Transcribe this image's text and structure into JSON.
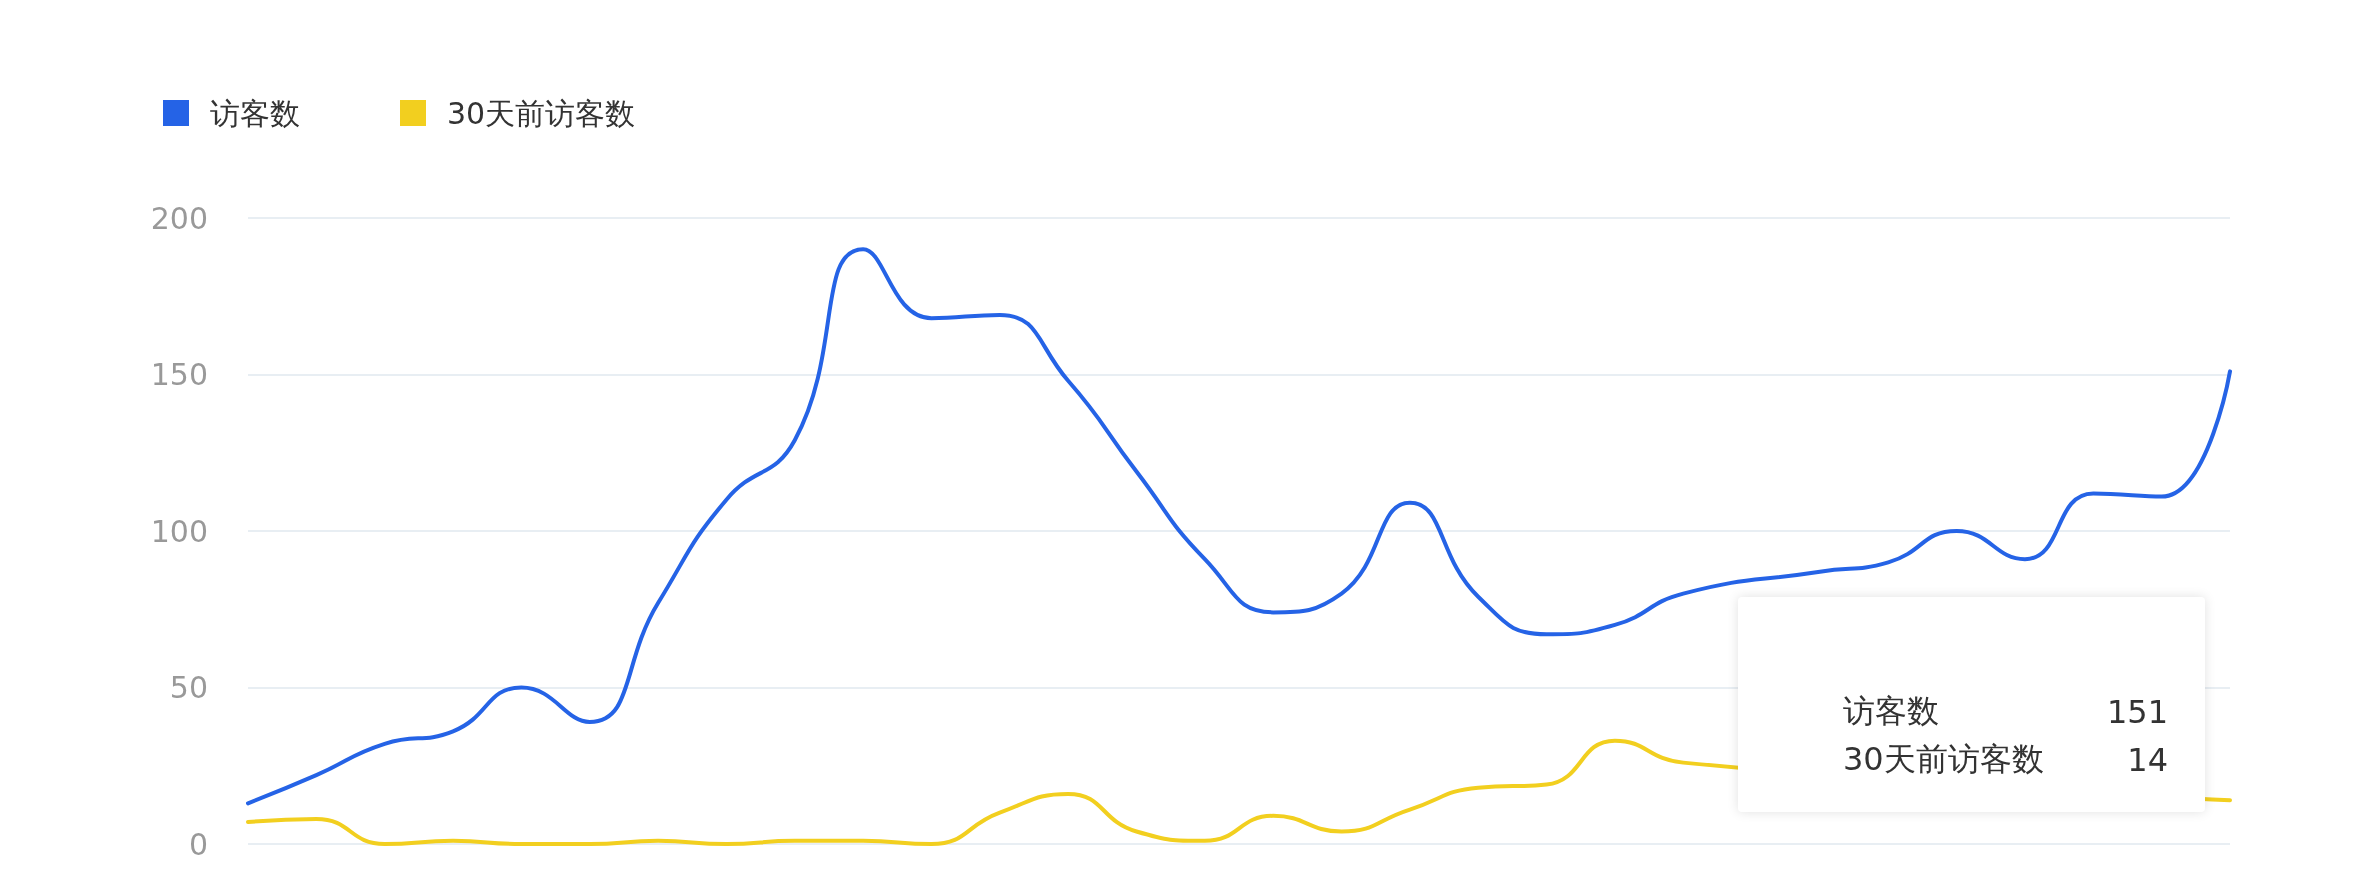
{
  "chart_data": {
    "type": "line",
    "categories": [
      null,
      null,
      null,
      null,
      null,
      null,
      null,
      null,
      null,
      null,
      null,
      null,
      null,
      null,
      null,
      null,
      null,
      null,
      null,
      null,
      null,
      null,
      null,
      null,
      null,
      null,
      null,
      null,
      null,
      null
    ],
    "series": [
      {
        "name": "访客数",
        "color": "#2563e6",
        "values": [
          13,
          22,
          32,
          36,
          50,
          39,
          77,
          110,
          129,
          190,
          168,
          169,
          148,
          119,
          91,
          74,
          80,
          109,
          79,
          67,
          70,
          80,
          null,
          87,
          90,
          100,
          91,
          112,
          111,
          151
        ]
      },
      {
        "name": "30天前访客数",
        "color": "#f2cf1f",
        "values": [
          7,
          8,
          0,
          1,
          0,
          0,
          1,
          0,
          1,
          1,
          0,
          10,
          16,
          4,
          1,
          9,
          4,
          11,
          18,
          19,
          33,
          26,
          null,
          null,
          null,
          null,
          null,
          null,
          null,
          14
        ]
      }
    ],
    "ylim": [
      0,
      200
    ],
    "yticks": [
      0,
      50,
      100,
      150,
      200
    ],
    "grid": "y",
    "legend": "top left",
    "marker": "none",
    "line_style": "solid",
    "annotations": [
      "151",
      "14"
    ]
  }
}
